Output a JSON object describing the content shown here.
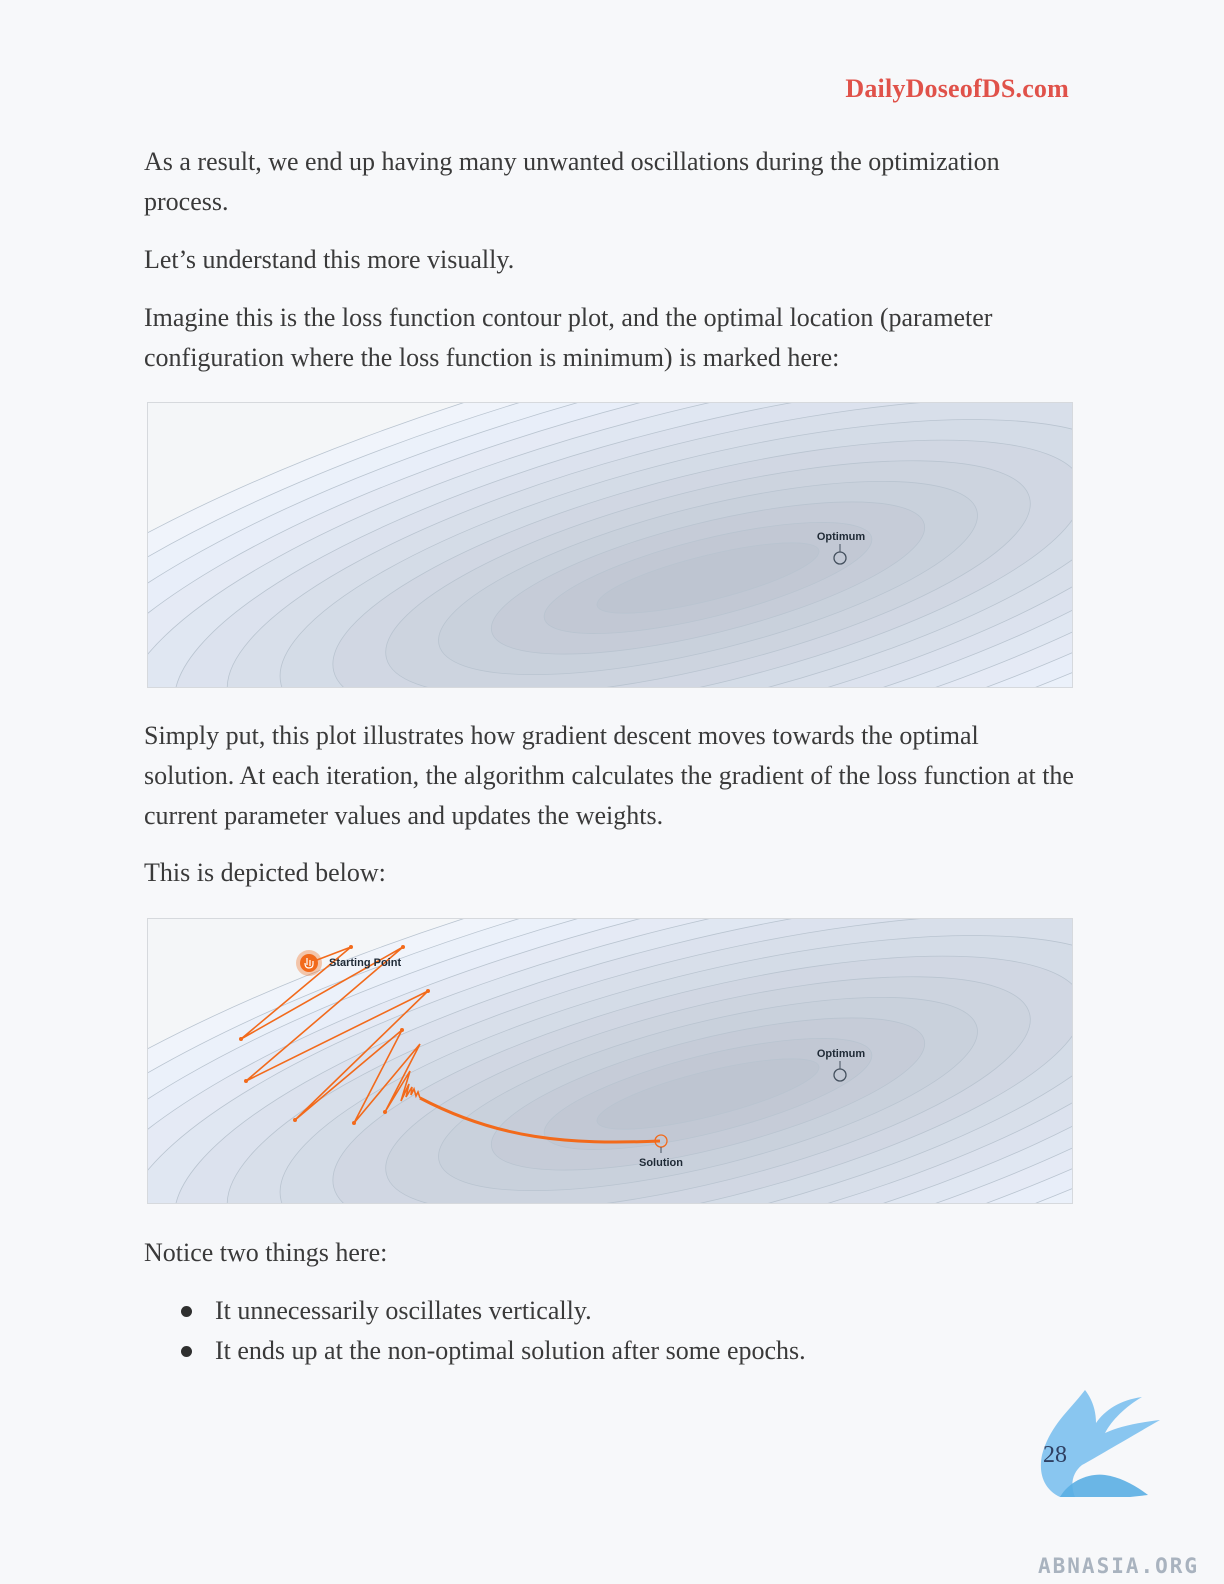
{
  "header": {
    "site": "DailyDoseofDS.com"
  },
  "paragraphs": {
    "p1": "As a result, we end up having many unwanted oscillations during the optimization process.",
    "p2": "Let’s understand this more visually.",
    "p3": "Imagine this is the loss function contour plot, and the optimal location (parameter configuration where the loss function is minimum) is marked here:",
    "p4": "Simply put, this plot illustrates how gradient descent moves towards the optimal solution. At each iteration, the algorithm calculates the gradient of the loss function at the current parameter values and updates the weights.",
    "p5": "This is depicted below:",
    "p6": "Notice two things here:"
  },
  "figure1": {
    "optimum_label": "Optimum"
  },
  "figure2": {
    "start_label": "Starting Point",
    "optimum_label": "Optimum",
    "solution_label": "Solution"
  },
  "bullets": [
    "It unnecessarily oscillates vertically.",
    "It ends up at the non-optimal solution after some epochs."
  ],
  "footer": {
    "page_number": "28",
    "watermark": "ABNASIA.ORG"
  },
  "colors": {
    "accent": "#e0524a",
    "path": "#f26a1b",
    "contour_fill": "#c9d3de"
  },
  "icons": {
    "start_marker": "hand-pointer-icon",
    "watermark_logo": "griffin-logo-icon"
  }
}
